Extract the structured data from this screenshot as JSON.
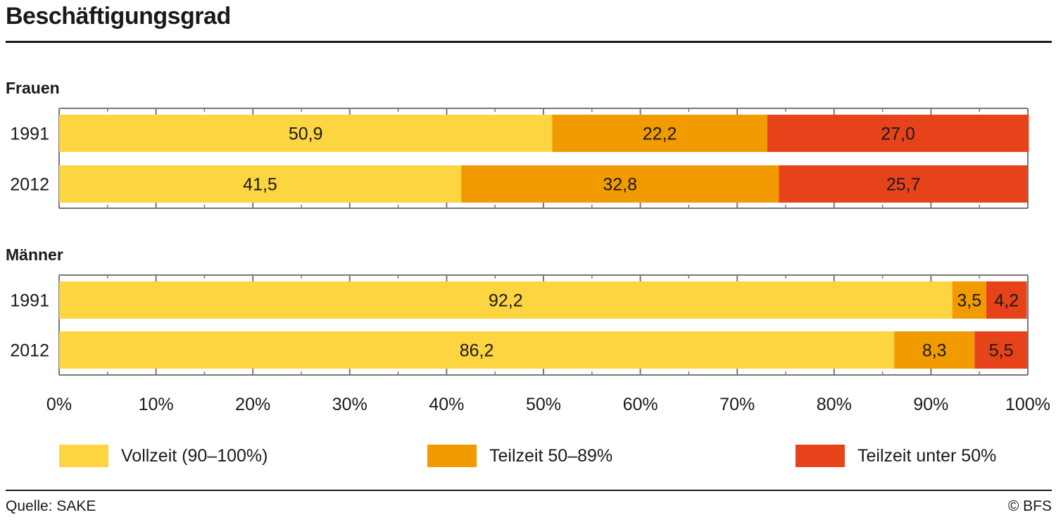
{
  "chart_data": {
    "type": "bar",
    "orientation": "horizontal",
    "stacked": true,
    "title": "Beschäftigungsgrad",
    "xlim": [
      0,
      100
    ],
    "x_ticks": [
      "0%",
      "10%",
      "20%",
      "30%",
      "40%",
      "50%",
      "60%",
      "70%",
      "80%",
      "90%",
      "100%"
    ],
    "grid": false,
    "legend_position": "bottom",
    "series": [
      {
        "name": "Vollzeit (90–100%)",
        "color": "#fdd541"
      },
      {
        "name": "Teilzeit 50–89%",
        "color": "#f29b00"
      },
      {
        "name": "Teilzeit unter 50%",
        "color": "#e6431a"
      }
    ],
    "groups": [
      {
        "label": "Frauen",
        "bars": [
          {
            "category": "1991",
            "values": [
              50.9,
              22.2,
              27.0
            ],
            "labels": [
              "50,9",
              "22,2",
              "27,0"
            ]
          },
          {
            "category": "2012",
            "values": [
              41.5,
              32.8,
              25.7
            ],
            "labels": [
              "41,5",
              "32,8",
              "25,7"
            ]
          }
        ]
      },
      {
        "label": "Männer",
        "bars": [
          {
            "category": "1991",
            "values": [
              92.2,
              3.5,
              4.2
            ],
            "labels": [
              "92,2",
              "3,5",
              "4,2"
            ]
          },
          {
            "category": "2012",
            "values": [
              86.2,
              8.3,
              5.5
            ],
            "labels": [
              "86,2",
              "8,3",
              "5,5"
            ]
          }
        ]
      }
    ]
  },
  "footer": {
    "source": "Quelle: SAKE",
    "copyright": "© BFS"
  }
}
